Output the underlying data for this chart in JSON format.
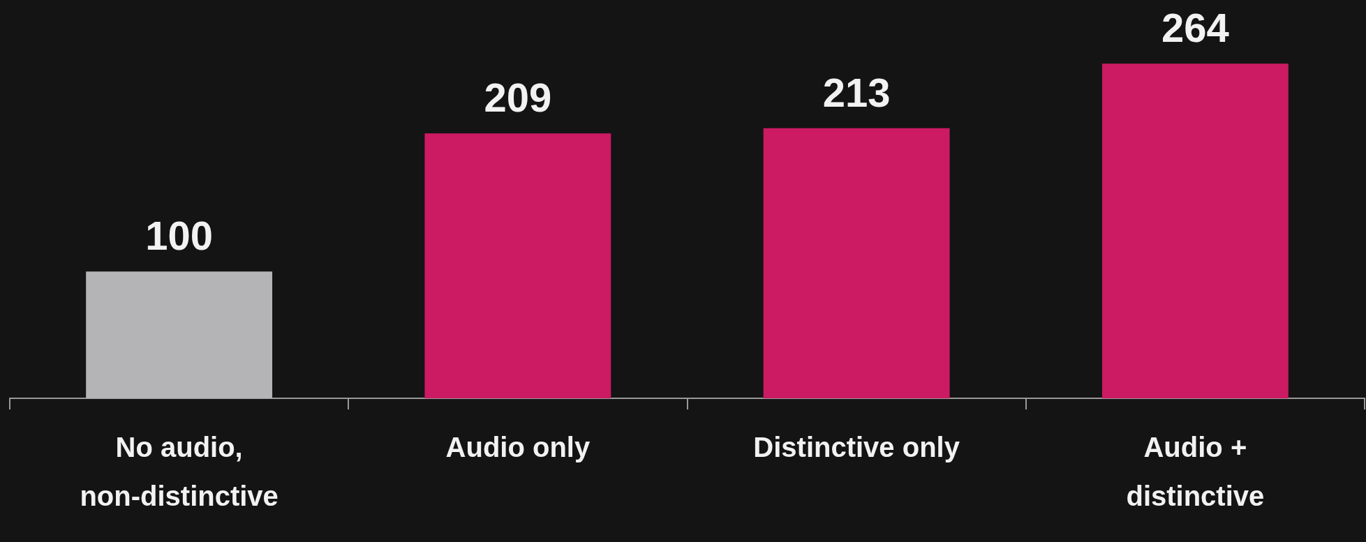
{
  "chart_data": {
    "type": "bar",
    "categories": [
      "No audio, non-distinctive",
      "Audio only",
      "Distinctive only",
      "Audio + distinctive"
    ],
    "values": [
      100,
      209,
      213,
      264
    ],
    "colors": [
      "#b4b4b6",
      "#cc1a63",
      "#cc1a63",
      "#cc1a63"
    ],
    "data_labels": true,
    "grid": false,
    "legend": false
  }
}
